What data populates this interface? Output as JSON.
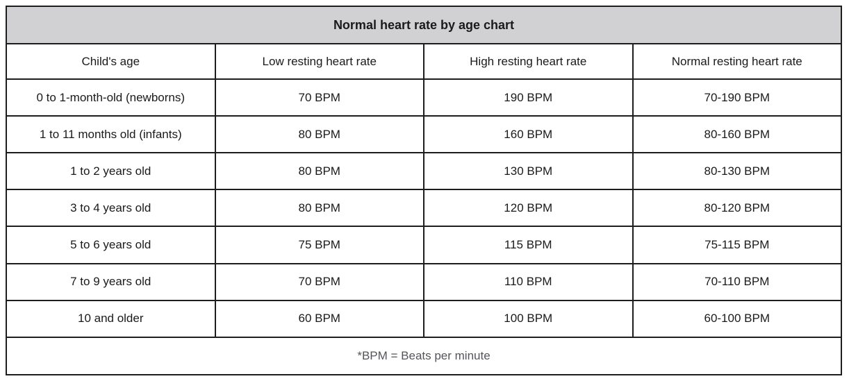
{
  "chart_data": {
    "type": "table",
    "title": "Normal heart rate by age chart",
    "columns": [
      "Child's age",
      "Low resting heart rate",
      "High resting heart rate",
      "Normal resting heart rate"
    ],
    "rows": [
      [
        "0 to 1-month-old (newborns)",
        "70 BPM",
        "190 BPM",
        "70-190 BPM"
      ],
      [
        "1 to 11 months old (infants)",
        "80 BPM",
        "160 BPM",
        "80-160 BPM"
      ],
      [
        "1 to 2 years old",
        "80 BPM",
        "130 BPM",
        "80-130 BPM"
      ],
      [
        "3 to 4 years old",
        "80 BPM",
        "120 BPM",
        "80-120 BPM"
      ],
      [
        "5 to 6 years old",
        "75 BPM",
        "115 BPM",
        "75-115 BPM"
      ],
      [
        "7 to 9 years old",
        "70 BPM",
        "110 BPM",
        "70-110 BPM"
      ],
      [
        "10 and older",
        "60 BPM",
        "100 BPM",
        "60-100 BPM"
      ]
    ],
    "footnote": "*BPM = Beats per minute"
  },
  "colors": {
    "title_bg": "#d1d1d4",
    "border_color": "#1d1d1d",
    "text_color": "#1a1a1a",
    "footnote_color": "#54545b"
  }
}
